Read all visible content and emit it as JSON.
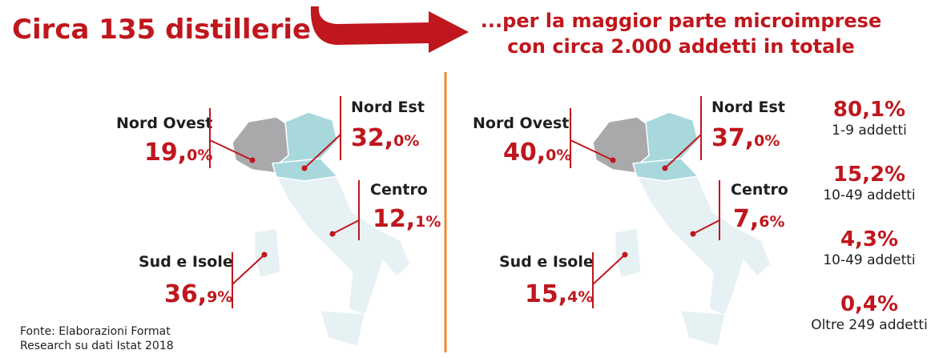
{
  "header": {
    "title": "Circa 135 distillerie",
    "subtitle_lines": [
      "...per la maggior parte microimprese",
      "con circa 2.000 addetti in totale"
    ]
  },
  "left_map": {
    "regions": [
      {
        "label": "Nord Ovest",
        "value_int": "19,",
        "value_dec": "0%"
      },
      {
        "label": "Nord Est",
        "value_int": "32,",
        "value_dec": "0%"
      },
      {
        "label": "Centro",
        "value_int": "12,",
        "value_dec": "1%"
      },
      {
        "label": "Sud e Isole",
        "value_int": "36,",
        "value_dec": "9%"
      }
    ]
  },
  "right_map": {
    "regions": [
      {
        "label": "Nord Ovest",
        "value_int": "40,",
        "value_dec": "0%"
      },
      {
        "label": "Nord Est",
        "value_int": "37,",
        "value_dec": "0%"
      },
      {
        "label": "Centro",
        "value_int": "7,",
        "value_dec": "6%"
      },
      {
        "label": "Sud e Isole",
        "value_int": "15,",
        "value_dec": "4%"
      }
    ]
  },
  "size_classes": [
    {
      "value": "80,1%",
      "label": "1-9 addetti"
    },
    {
      "value": "15,2%",
      "label": "10-49 addetti"
    },
    {
      "value": "4,3%",
      "label": "10-49 addetti"
    },
    {
      "value": "0,4%",
      "label": "Oltre 249 addetti"
    }
  ],
  "source": [
    "Fonte: Elaborazioni Format",
    "Research su dati Istat 2018"
  ]
}
